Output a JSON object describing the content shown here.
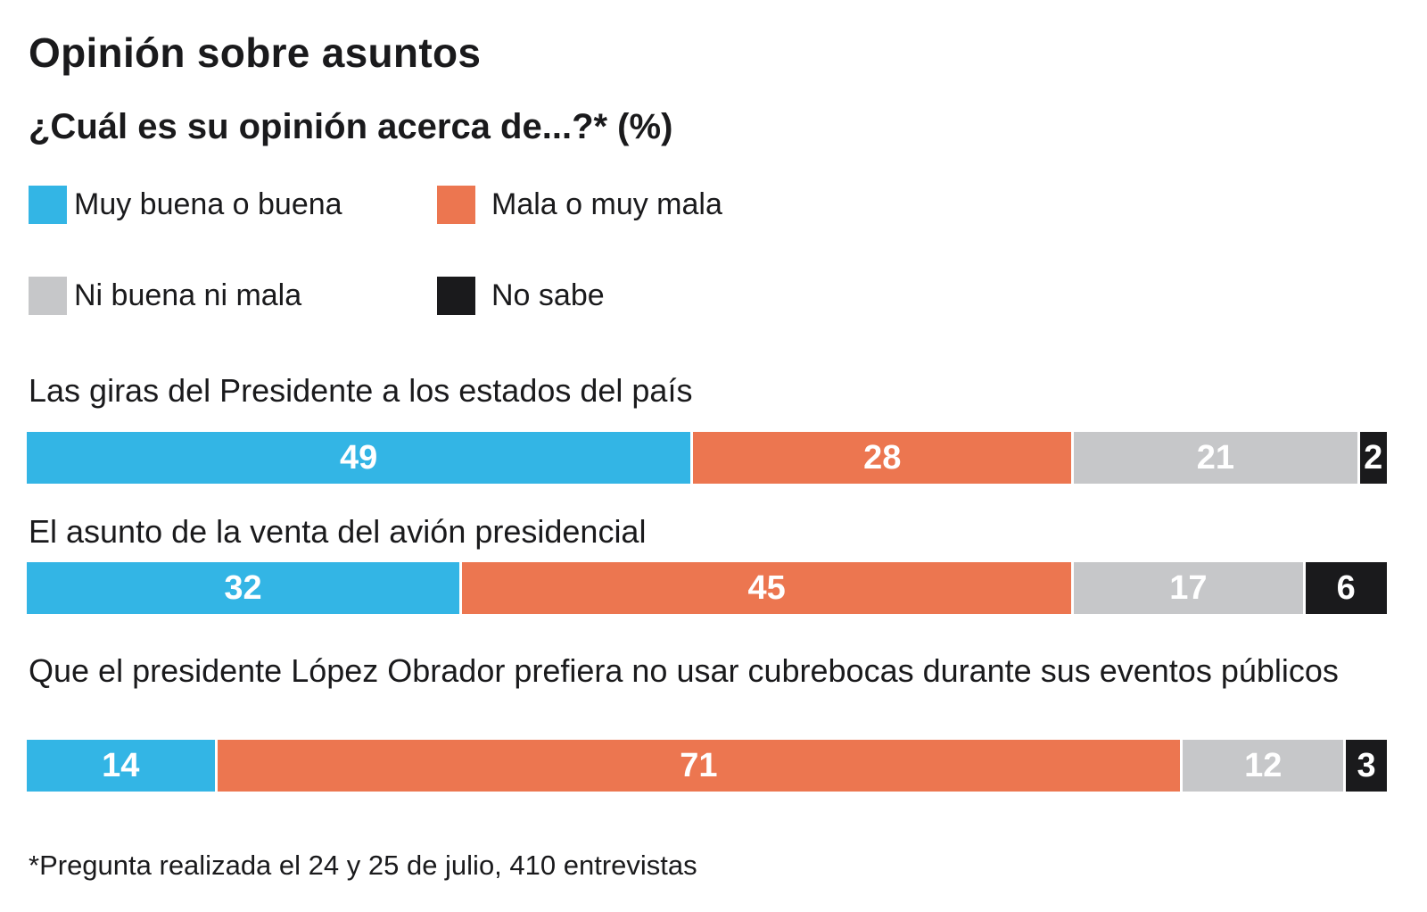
{
  "chart_data": {
    "type": "bar",
    "orientation": "horizontal",
    "stacked": true,
    "title": "Opinión sobre asuntos",
    "subtitle": "¿Cuál es su opinión acerca de...?*  (%)",
    "legend_position": "top",
    "series": [
      {
        "name": "Muy buena o buena",
        "color": "#33b5e5",
        "values": [
          49,
          32,
          14
        ]
      },
      {
        "name": "Mala o muy mala",
        "color": "#ec7650",
        "values": [
          28,
          45,
          71
        ]
      },
      {
        "name": "Ni buena ni mala",
        "color": "#c6c7c9",
        "values": [
          21,
          17,
          12
        ]
      },
      {
        "name": "No sabe",
        "color": "#1a1a1c",
        "values": [
          2,
          6,
          3
        ]
      }
    ],
    "categories": [
      "Las giras del Presidente a los estados del país",
      "El asunto de la venta del avión presidencial",
      "Que el presidente López Obrador prefiera no usar cubrebocas durante sus eventos públicos"
    ],
    "xlim": [
      0,
      100
    ],
    "grid": false,
    "footnote": "*Pregunta realizada el 24 y 25 de julio, 410 entrevistas"
  }
}
